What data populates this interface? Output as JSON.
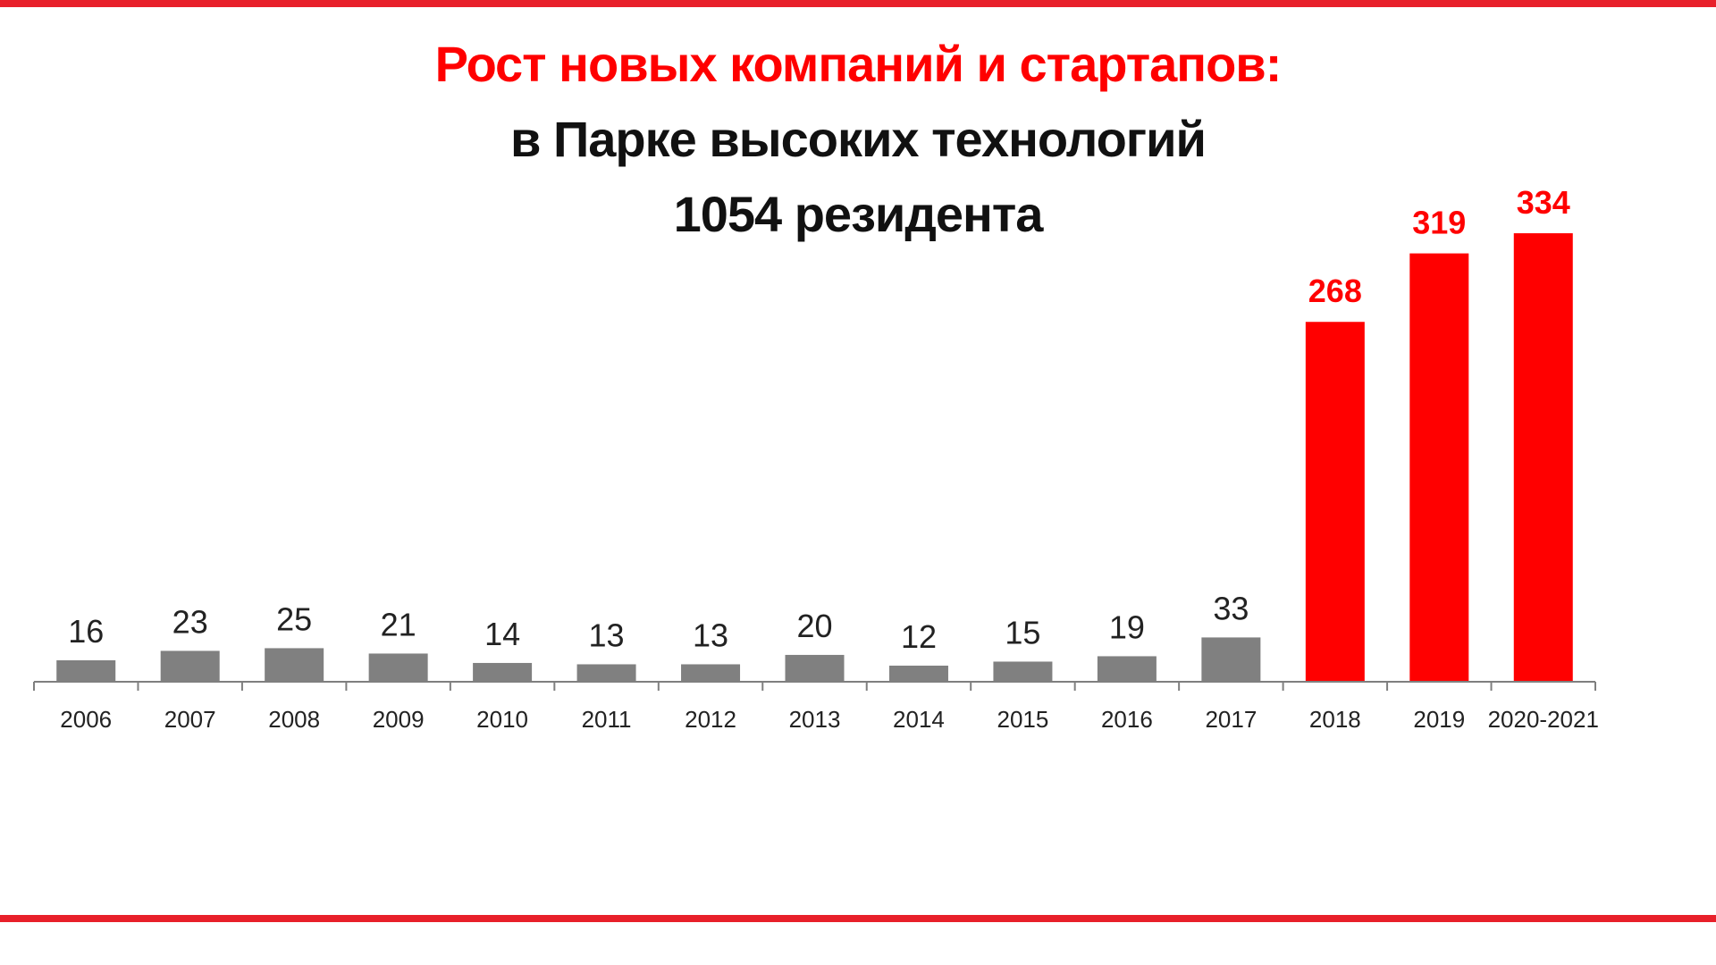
{
  "title": {
    "line1": "Рост новых компаний и стартапов:",
    "line2": "в Парке высоких технологий",
    "line3": "1054 резидента"
  },
  "colors": {
    "accent": "#ff0000",
    "base_bar": "#808080",
    "text_dark": "#111111",
    "rule": "#e8202a",
    "axis": "#7f7f7f"
  },
  "chart_data": {
    "type": "bar",
    "title": "Рост новых компаний и стартапов: в Парке высоких технологий 1054 резидента",
    "xlabel": "",
    "ylabel": "",
    "ylim": [
      0,
      350
    ],
    "grid": false,
    "legend": "none",
    "categories": [
      "2006",
      "2007",
      "2008",
      "2009",
      "2010",
      "2011",
      "2012",
      "2013",
      "2014",
      "2015",
      "2016",
      "2017",
      "2018",
      "2019",
      "2020-2021"
    ],
    "values": [
      16,
      23,
      25,
      21,
      14,
      13,
      13,
      20,
      12,
      15,
      19,
      33,
      268,
      319,
      334
    ],
    "highlighted": [
      false,
      false,
      false,
      false,
      false,
      false,
      false,
      false,
      false,
      false,
      false,
      false,
      true,
      true,
      true
    ]
  }
}
